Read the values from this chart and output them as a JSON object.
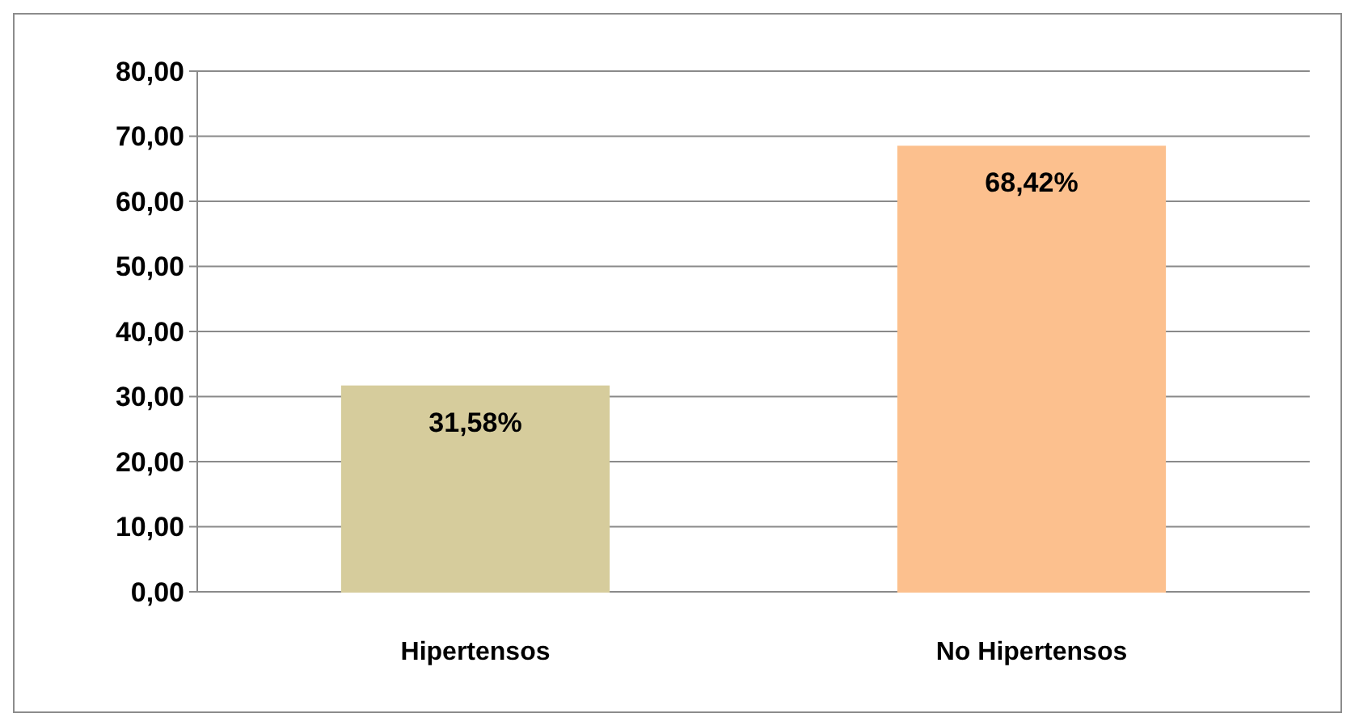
{
  "chart_data": {
    "type": "bar",
    "categories": [
      "Hipertensos",
      "No Hipertensos"
    ],
    "values": [
      31.58,
      68.42
    ],
    "colors": [
      "#d6cc9c",
      "#fcc08e"
    ],
    "value_labels": [
      "31,58%",
      "68,42%"
    ],
    "ylim": [
      0,
      80
    ],
    "yticks": [
      {
        "value": 0,
        "label": "0,00"
      },
      {
        "value": 10,
        "label": "10,00"
      },
      {
        "value": 20,
        "label": "20,00"
      },
      {
        "value": 30,
        "label": "30,00"
      },
      {
        "value": 40,
        "label": "40,00"
      },
      {
        "value": 50,
        "label": "50,00"
      },
      {
        "value": 60,
        "label": "60,00"
      },
      {
        "value": 70,
        "label": "70,00"
      },
      {
        "value": 80,
        "label": "80,00"
      }
    ],
    "grid": "y"
  }
}
